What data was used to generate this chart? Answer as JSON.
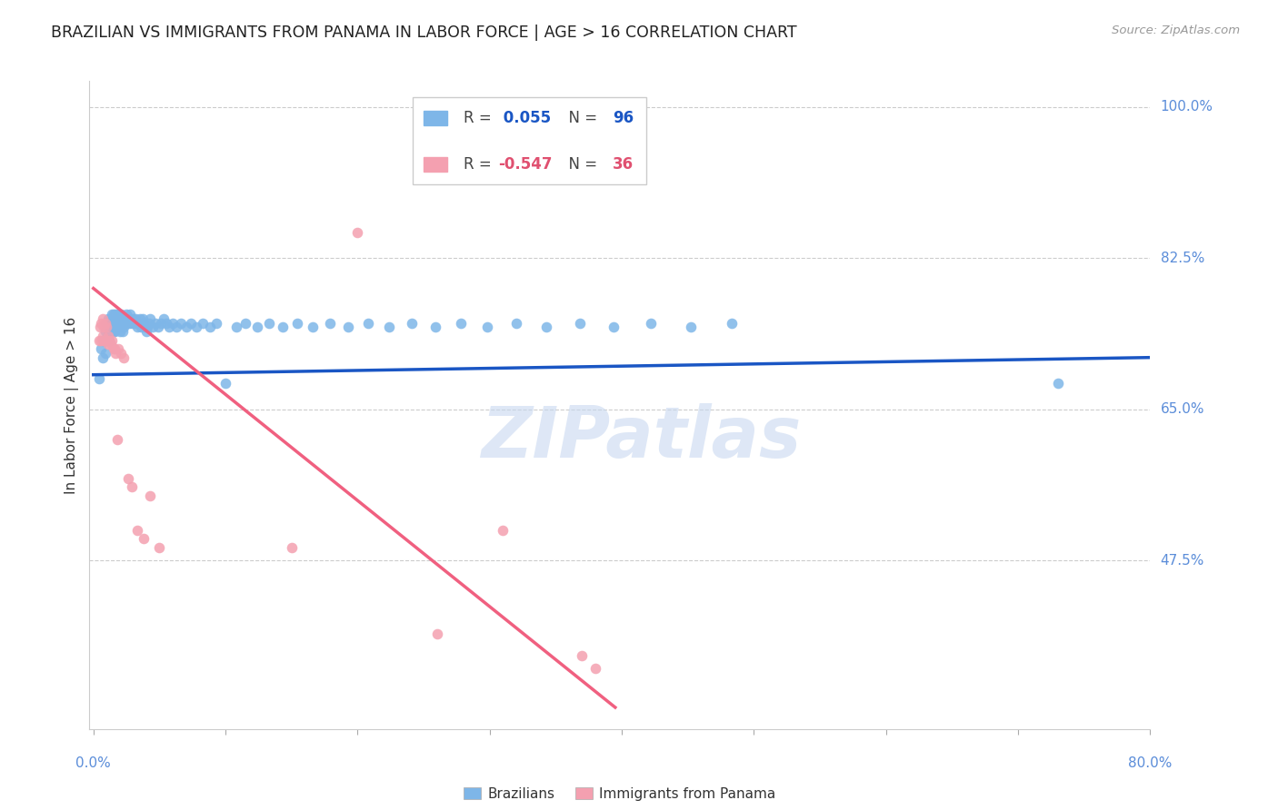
{
  "title": "BRAZILIAN VS IMMIGRANTS FROM PANAMA IN LABOR FORCE | AGE > 16 CORRELATION CHART",
  "source": "Source: ZipAtlas.com",
  "ylabel": "In Labor Force | Age > 16",
  "ytick_labels": [
    "100.0%",
    "82.5%",
    "65.0%",
    "47.5%"
  ],
  "ytick_values": [
    1.0,
    0.825,
    0.65,
    0.475
  ],
  "ymin": 0.28,
  "ymax": 1.03,
  "xmin": -0.003,
  "xmax": 0.8,
  "brazil_R": 0.055,
  "brazil_N": 96,
  "panama_R": -0.547,
  "panama_N": 36,
  "brazil_color": "#7eb6e8",
  "panama_color": "#f4a0b0",
  "brazil_line_color": "#1a56c4",
  "panama_line_color": "#f06080",
  "background_color": "#ffffff",
  "watermark_text": "ZIPatlas",
  "watermark_color": "#c8d8f0",
  "brazil_x": [
    0.004,
    0.006,
    0.007,
    0.008,
    0.009,
    0.009,
    0.01,
    0.01,
    0.011,
    0.011,
    0.012,
    0.012,
    0.013,
    0.013,
    0.014,
    0.014,
    0.015,
    0.015,
    0.015,
    0.016,
    0.016,
    0.017,
    0.017,
    0.018,
    0.018,
    0.019,
    0.019,
    0.02,
    0.02,
    0.021,
    0.021,
    0.022,
    0.022,
    0.023,
    0.023,
    0.024,
    0.025,
    0.025,
    0.026,
    0.027,
    0.028,
    0.029,
    0.03,
    0.031,
    0.032,
    0.033,
    0.034,
    0.035,
    0.036,
    0.037,
    0.038,
    0.039,
    0.04,
    0.041,
    0.042,
    0.043,
    0.045,
    0.047,
    0.049,
    0.051,
    0.053,
    0.055,
    0.057,
    0.06,
    0.063,
    0.066,
    0.07,
    0.074,
    0.078,
    0.083,
    0.088,
    0.093,
    0.1,
    0.108,
    0.115,
    0.124,
    0.133,
    0.143,
    0.154,
    0.166,
    0.179,
    0.193,
    0.208,
    0.224,
    0.241,
    0.259,
    0.278,
    0.298,
    0.32,
    0.343,
    0.368,
    0.394,
    0.422,
    0.452,
    0.483,
    0.73
  ],
  "brazil_y": [
    0.685,
    0.72,
    0.71,
    0.73,
    0.715,
    0.74,
    0.75,
    0.73,
    0.755,
    0.74,
    0.75,
    0.73,
    0.755,
    0.74,
    0.75,
    0.76,
    0.745,
    0.76,
    0.74,
    0.755,
    0.74,
    0.76,
    0.745,
    0.76,
    0.75,
    0.745,
    0.76,
    0.755,
    0.74,
    0.75,
    0.76,
    0.75,
    0.74,
    0.755,
    0.745,
    0.755,
    0.75,
    0.76,
    0.755,
    0.75,
    0.76,
    0.75,
    0.755,
    0.75,
    0.755,
    0.745,
    0.75,
    0.755,
    0.745,
    0.755,
    0.75,
    0.745,
    0.74,
    0.745,
    0.75,
    0.755,
    0.745,
    0.75,
    0.745,
    0.75,
    0.755,
    0.75,
    0.745,
    0.75,
    0.745,
    0.75,
    0.745,
    0.75,
    0.745,
    0.75,
    0.745,
    0.75,
    0.68,
    0.745,
    0.75,
    0.745,
    0.75,
    0.745,
    0.75,
    0.745,
    0.75,
    0.745,
    0.75,
    0.745,
    0.75,
    0.745,
    0.75,
    0.745,
    0.75,
    0.745,
    0.75,
    0.745,
    0.75,
    0.745,
    0.75,
    0.68
  ],
  "panama_x": [
    0.004,
    0.005,
    0.006,
    0.006,
    0.007,
    0.007,
    0.008,
    0.008,
    0.009,
    0.009,
    0.01,
    0.01,
    0.011,
    0.011,
    0.012,
    0.013,
    0.014,
    0.015,
    0.016,
    0.017,
    0.018,
    0.019,
    0.021,
    0.023,
    0.026,
    0.029,
    0.033,
    0.038,
    0.043,
    0.05,
    0.15,
    0.2,
    0.26,
    0.31,
    0.37,
    0.38
  ],
  "panama_y": [
    0.73,
    0.745,
    0.73,
    0.75,
    0.735,
    0.755,
    0.73,
    0.745,
    0.73,
    0.75,
    0.73,
    0.745,
    0.735,
    0.725,
    0.73,
    0.725,
    0.73,
    0.72,
    0.72,
    0.715,
    0.615,
    0.72,
    0.715,
    0.71,
    0.57,
    0.56,
    0.51,
    0.5,
    0.55,
    0.49,
    0.49,
    0.855,
    0.39,
    0.51,
    0.365,
    0.35
  ],
  "brazil_line_x": [
    0.0,
    0.8
  ],
  "brazil_line_y": [
    0.69,
    0.71
  ],
  "panama_line_x": [
    0.0,
    0.395
  ],
  "panama_line_y": [
    0.79,
    0.305
  ]
}
